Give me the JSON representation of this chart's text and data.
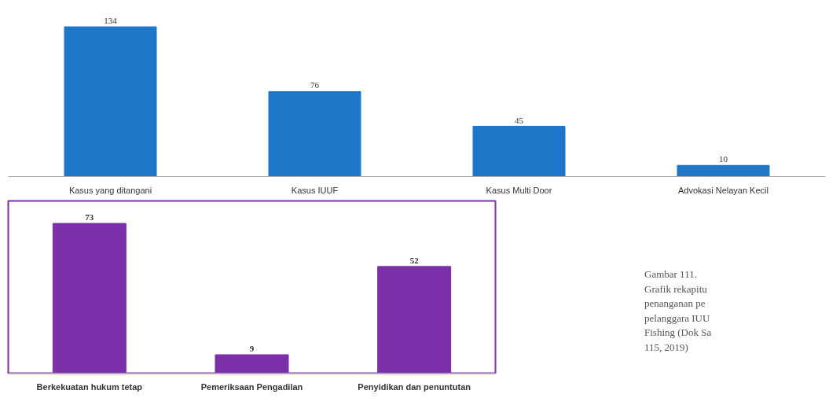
{
  "chart_data": [
    {
      "type": "bar",
      "categories": [
        "Kasus yang ditangani",
        "Kasus IUUF",
        "Kasus Multi Door",
        "Advokasi Nelayan Kecil"
      ],
      "values": [
        134,
        76,
        45,
        10
      ],
      "color": "#1f77c9",
      "data_labels": true,
      "grid": false,
      "tick_labels": "x"
    },
    {
      "type": "bar",
      "categories": [
        "Berkekuatan hukum tetap",
        "Pemeriksaan Pengadilan",
        "Penyidikan dan penuntutan"
      ],
      "values": [
        73,
        9,
        52
      ],
      "color": "#7b2fa8",
      "data_labels": true,
      "grid": false,
      "tick_labels": "x",
      "annotations": [
        "Gambar 111.",
        "Grafik rekapitu",
        "penanganan pe",
        "pelanggara IUU",
        "Fishing (Dok Sa",
        "115, 2019)"
      ]
    }
  ]
}
